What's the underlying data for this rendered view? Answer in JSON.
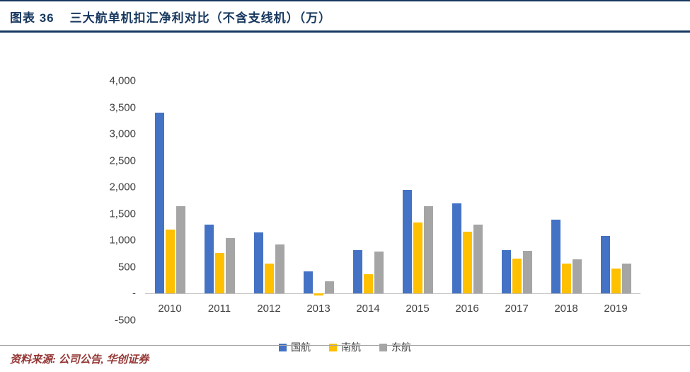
{
  "header": {
    "fig_label": "图表  36",
    "title": "三大航单机扣汇净利对比（不含支线机）（万）"
  },
  "chart_data": {
    "type": "bar",
    "title": "三大航单机扣汇净利对比（不含支线机）（万）",
    "categories": [
      "2010",
      "2011",
      "2012",
      "2013",
      "2014",
      "2015",
      "2016",
      "2017",
      "2018",
      "2019"
    ],
    "series": [
      {
        "name": "国航",
        "color": "#4472C4",
        "values": [
          3400,
          1300,
          1150,
          420,
          820,
          1950,
          1700,
          820,
          1390,
          1080
        ]
      },
      {
        "name": "南航",
        "color": "#FFC000",
        "values": [
          1200,
          770,
          570,
          -40,
          370,
          1340,
          1160,
          660,
          560,
          470
        ]
      },
      {
        "name": "东航",
        "color": "#A5A5A5",
        "values": [
          1650,
          1050,
          930,
          230,
          790,
          1650,
          1300,
          800,
          650,
          560
        ]
      }
    ],
    "y_ticks": [
      {
        "label": "4,000",
        "value": 4000
      },
      {
        "label": "3,500",
        "value": 3500
      },
      {
        "label": "3,000",
        "value": 3000
      },
      {
        "label": "2,500",
        "value": 2500
      },
      {
        "label": "2,000",
        "value": 2000
      },
      {
        "label": "1,500",
        "value": 1500
      },
      {
        "label": "1,000",
        "value": 1000
      },
      {
        "label": "500",
        "value": 500
      },
      {
        "label": "-",
        "value": 0
      },
      {
        "label": "-500",
        "value": -500
      }
    ],
    "ylim": [
      -500,
      4000
    ],
    "xlabel": "",
    "ylabel": "",
    "grid": false,
    "legend_position": "bottom"
  },
  "footer": {
    "source": "资料来源: 公司公告, 华创证券"
  },
  "colors": {
    "accent_navy": "#17375E",
    "axis_text": "#404040",
    "zero_line": "#BFBFBF",
    "source_text": "#953735"
  }
}
